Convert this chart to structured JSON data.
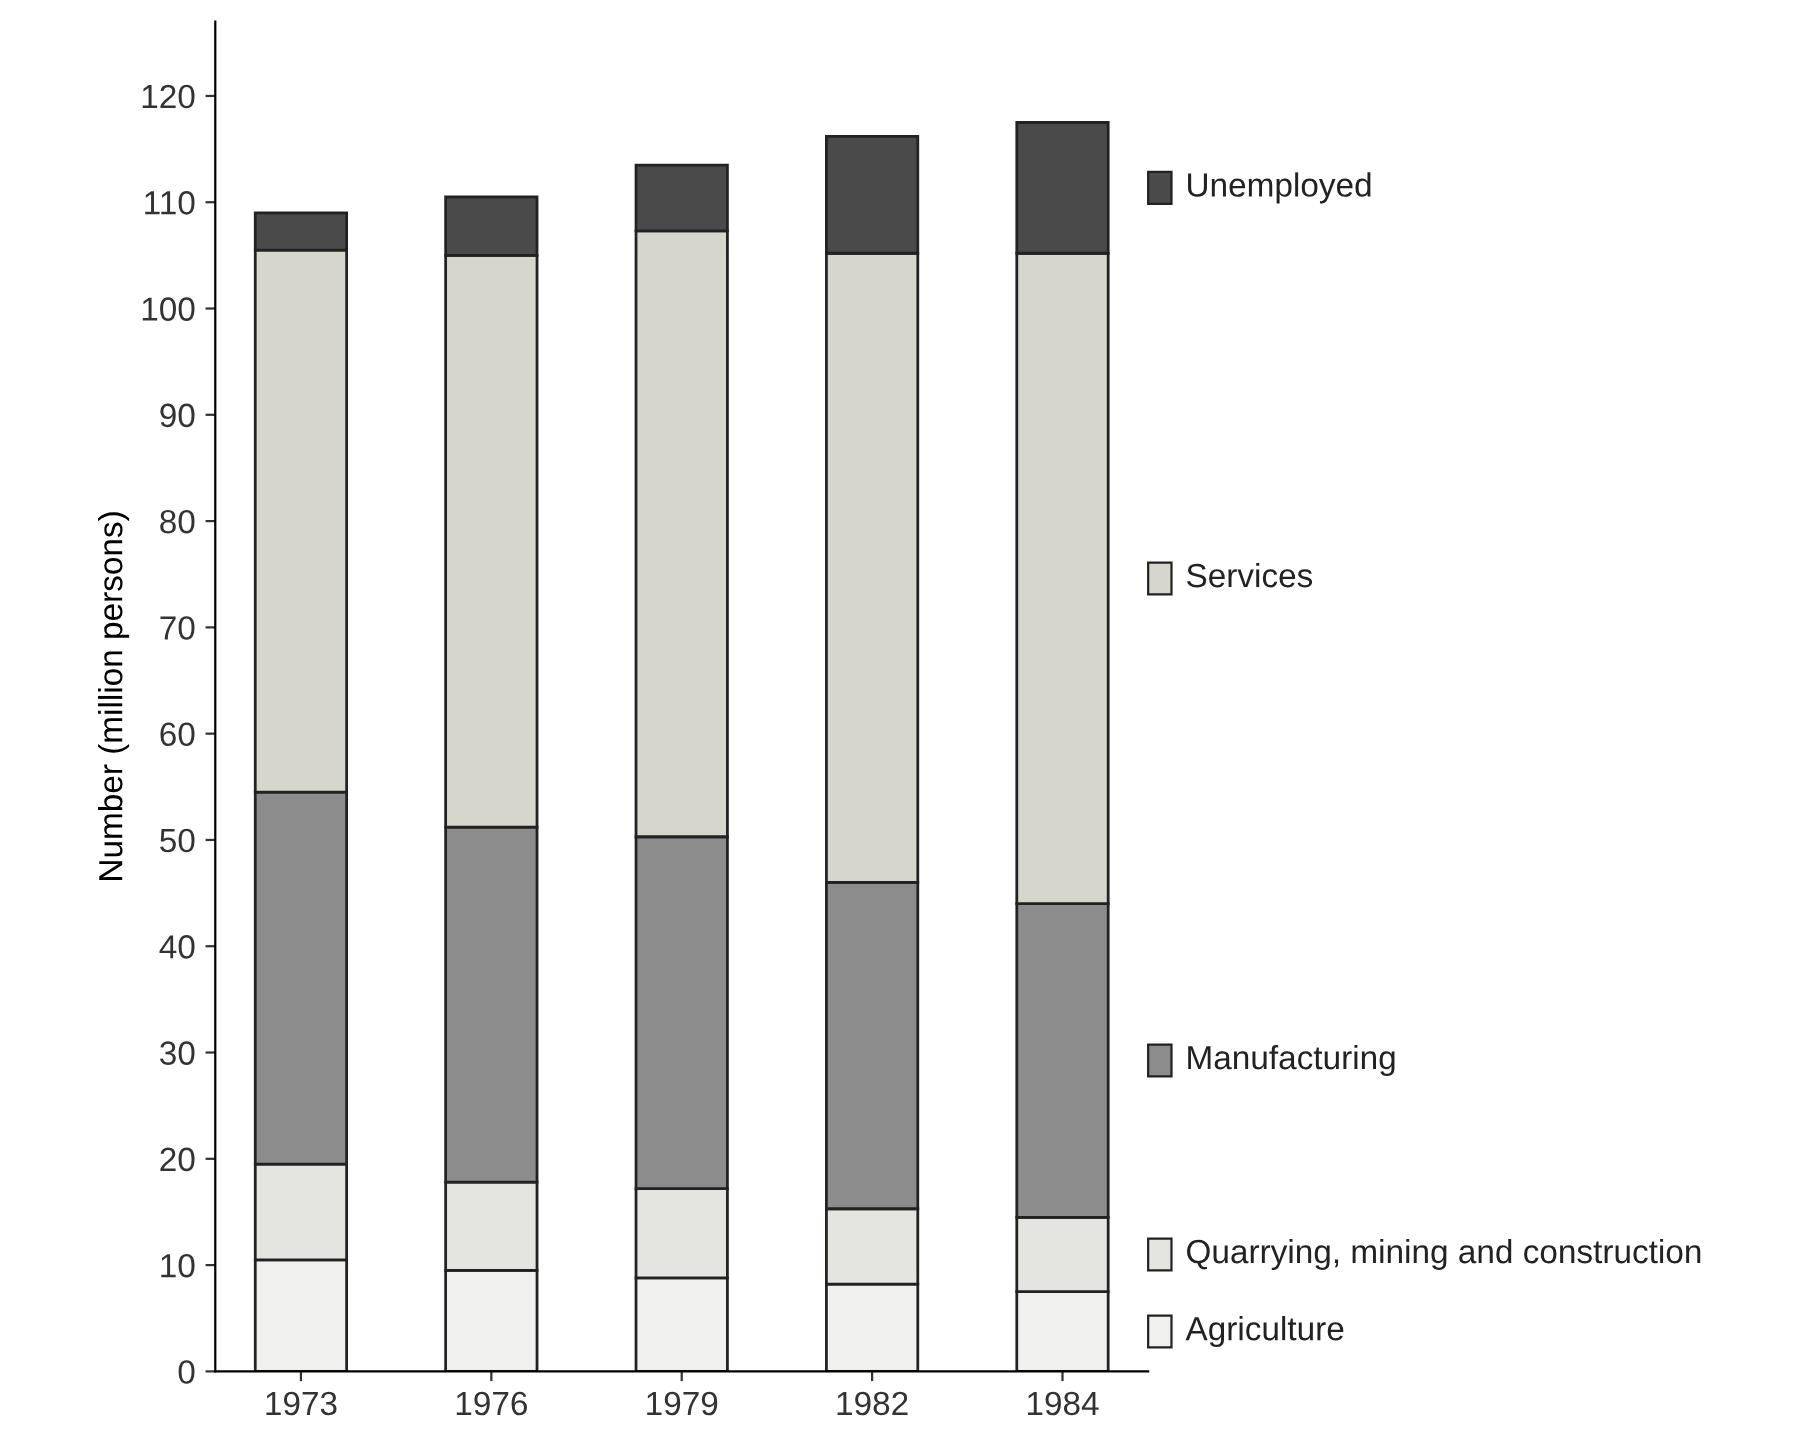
{
  "chart_data": {
    "type": "bar",
    "stacked": true,
    "ylabel": "Number (million persons)",
    "categories": [
      "1973",
      "1976",
      "1979",
      "1982",
      "1984"
    ],
    "series": [
      {
        "name": "Agriculture",
        "color": "#f0f0ee",
        "values": [
          10.5,
          9.5,
          8.8,
          8.2,
          7.5
        ]
      },
      {
        "name": "Quarrying, mining and construction",
        "color": "#e4e4e0",
        "values": [
          9,
          8.3,
          8.4,
          7.1,
          7
        ]
      },
      {
        "name": "Manufacturing",
        "color": "#8c8c8c",
        "values": [
          35,
          33.4,
          33.1,
          30.7,
          29.5
        ]
      },
      {
        "name": "Services",
        "color": "#d6d6cc",
        "values": [
          51,
          53.8,
          57,
          59.2,
          61.2
        ]
      },
      {
        "name": "Unemployed",
        "color": "#4a4a4a",
        "values": [
          3.5,
          5.5,
          6.2,
          11,
          12.3
        ]
      }
    ],
    "ylim": [
      0,
      127
    ],
    "yticks": [
      0,
      10,
      20,
      30,
      40,
      50,
      60,
      70,
      80,
      90,
      100,
      110,
      120
    ],
    "grid": false,
    "legend": "right"
  }
}
